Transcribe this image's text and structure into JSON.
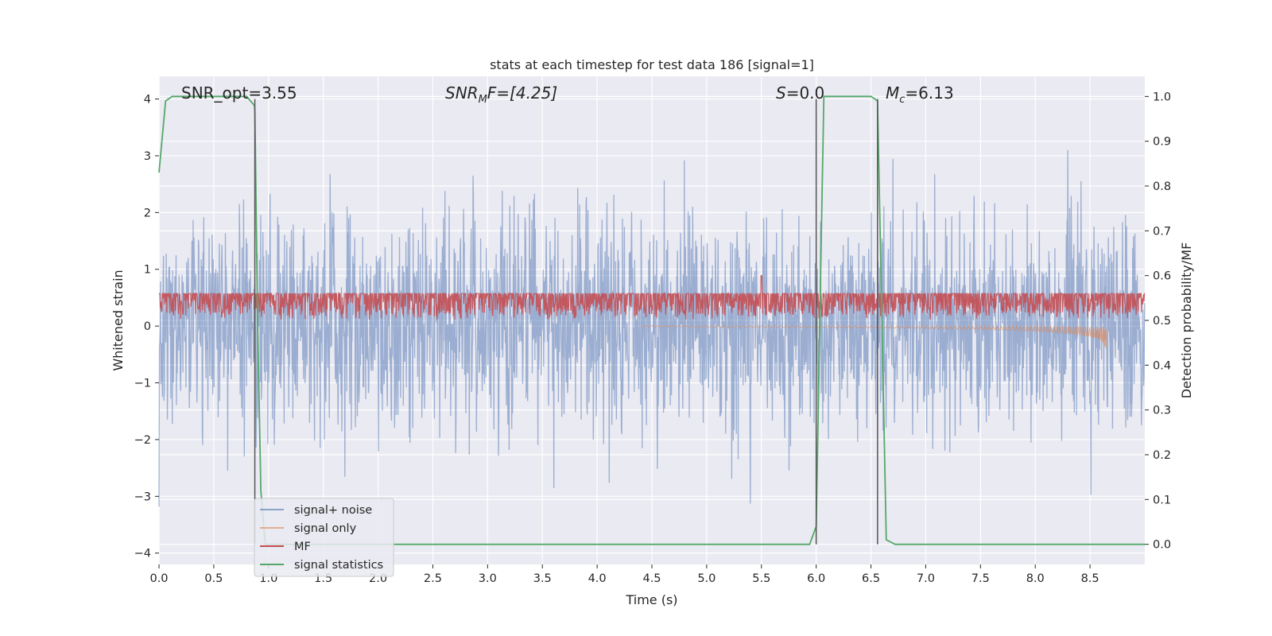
{
  "chart_data": {
    "type": "line",
    "title": "stats at each timestep for test data 186 [signal=1]",
    "xlabel": "Time (s)",
    "ylabel": "Whitened strain",
    "y2label": "Detection probability/MF",
    "xlim": [
      0,
      9
    ],
    "ylim": [
      -4.2,
      4.4
    ],
    "y2lim": [
      -0.045,
      1.045
    ],
    "xticks": [
      0.0,
      0.5,
      1.0,
      1.5,
      2.0,
      2.5,
      3.0,
      3.5,
      4.0,
      4.5,
      5.0,
      5.5,
      6.0,
      6.5,
      7.0,
      7.5,
      8.0,
      8.5
    ],
    "yticks": [
      -4,
      -3,
      -2,
      -1,
      0,
      1,
      2,
      3,
      4
    ],
    "y2ticks": [
      0.0,
      0.1,
      0.2,
      0.3,
      0.4,
      0.5,
      0.6,
      0.7,
      0.8,
      0.9,
      1.0
    ],
    "grid": true,
    "legend_position": "lower-left",
    "colors": {
      "background": "#eaeaf2",
      "grid": "#ffffff",
      "signal_noise": "#4c72b0",
      "signal_only": "#dd8452",
      "mf": "#c44e52",
      "signal_statistics": "#55a868",
      "vlines": "#555555"
    },
    "annotations": {
      "snr_opt": "SNR_opt=3.55",
      "snr_mf_main": "SNR",
      "snr_mf_sub": "M",
      "snr_mf_rest": "F=[4.25]",
      "s_value_main": "S",
      "s_value_rest": "=0.0",
      "mc_main": "M",
      "mc_sub": "c",
      "mc_rest": "=6.13"
    },
    "vertical_lines": [
      0.875,
      6.0,
      6.56
    ],
    "series": [
      {
        "name": "signal+ noise",
        "axis": "left",
        "style": "noise",
        "sigma": 0.9,
        "duration": 9.0
      },
      {
        "name": "signal only",
        "axis": "left",
        "style": "chirp",
        "x": [
          0.0,
          4.5,
          6.0,
          7.0,
          7.5,
          8.0,
          8.3,
          8.5,
          8.6,
          8.65
        ],
        "envelope": [
          0.0,
          0.02,
          0.03,
          0.05,
          0.07,
          0.1,
          0.14,
          0.19,
          0.25,
          0.42
        ]
      },
      {
        "name": "MF",
        "axis": "right",
        "style": "mf",
        "baseline": 0.5,
        "scale": 0.12,
        "peak_x": 5.5,
        "peak_y": 0.6
      },
      {
        "name": "signal statistics",
        "axis": "right",
        "style": "line",
        "x": [
          0.0,
          0.06,
          0.12,
          0.5,
          0.8,
          0.87,
          0.875,
          0.9,
          0.93,
          0.97,
          5.94,
          6.0,
          6.04,
          6.07,
          6.5,
          6.56,
          6.6,
          6.64,
          6.72,
          9.0
        ],
        "y": [
          0.83,
          0.99,
          1.0,
          1.0,
          1.0,
          0.98,
          0.97,
          0.5,
          0.12,
          0.0,
          0.0,
          0.04,
          0.6,
          1.0,
          1.0,
          0.99,
          0.5,
          0.01,
          0.0,
          0.0
        ]
      }
    ]
  }
}
